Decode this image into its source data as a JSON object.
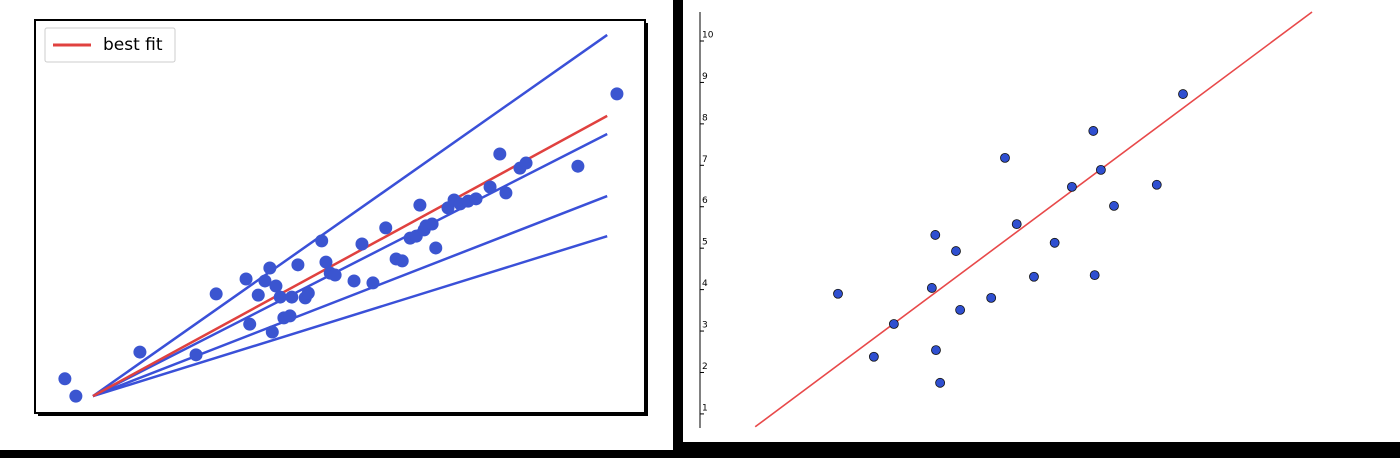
{
  "chart_data": [
    {
      "type": "scatter",
      "legend": "upper left",
      "xlim": [
        0,
        10
      ],
      "ylim": [
        0,
        10
      ],
      "points": {
        "color": "#3b55d0",
        "x": [
          0.49,
          0.67,
          1.72,
          2.64,
          2.97,
          3.46,
          3.52,
          3.66,
          3.77,
          3.85,
          3.89,
          3.95,
          4.02,
          4.08,
          4.18,
          4.21,
          4.31,
          4.43,
          4.48,
          4.7,
          4.77,
          4.84,
          4.92,
          5.23,
          5.36,
          5.54,
          5.75,
          5.92,
          6.02,
          6.15,
          6.25,
          6.31,
          6.38,
          6.41,
          6.51,
          6.57,
          6.77,
          6.87,
          6.97,
          7.1,
          7.23,
          7.46,
          7.62,
          7.72,
          7.95,
          8.05,
          8.9,
          9.54
        ],
        "y": [
          0.87,
          0.43,
          1.55,
          1.48,
          3.03,
          3.41,
          2.26,
          3.0,
          3.36,
          3.69,
          2.06,
          3.23,
          2.95,
          2.42,
          2.47,
          2.95,
          3.77,
          2.93,
          3.05,
          4.38,
          3.84,
          3.56,
          3.51,
          3.36,
          4.3,
          3.31,
          4.71,
          3.92,
          3.87,
          4.45,
          4.5,
          5.29,
          4.66,
          4.76,
          4.81,
          4.2,
          5.22,
          5.42,
          5.32,
          5.39,
          5.45,
          5.75,
          6.59,
          5.6,
          6.23,
          6.36,
          6.28,
          8.12
        ]
      },
      "series": [
        {
          "color": "#3a50d8",
          "x": [
            0.95,
            9.38
          ],
          "values": [
            0.43,
            9.62
          ]
        },
        {
          "color": "#3a50d8",
          "x": [
            0.95,
            9.38
          ],
          "values": [
            0.43,
            7.1
          ]
        },
        {
          "color": "#3a50d8",
          "x": [
            0.95,
            9.38
          ],
          "values": [
            0.43,
            5.52
          ]
        },
        {
          "color": "#3a50d8",
          "x": [
            0.95,
            9.38
          ],
          "values": [
            0.43,
            4.5
          ]
        },
        {
          "name": "best fit",
          "color": "#e0413f",
          "x": [
            0.95,
            9.38
          ],
          "values": [
            0.43,
            7.56
          ]
        }
      ]
    },
    {
      "type": "scatter",
      "xlim": [
        0,
        10
      ],
      "ylim": [
        0.66,
        10.7
      ],
      "yticks": [
        1,
        2,
        3,
        4,
        5,
        6,
        7,
        8,
        9,
        10
      ],
      "points": {
        "color": "#2f4fd0",
        "x": [
          2.0,
          2.52,
          2.81,
          3.36,
          3.41,
          3.42,
          3.48,
          3.71,
          3.77,
          4.22,
          4.42,
          4.59,
          4.84,
          5.14,
          5.39,
          5.7,
          5.72,
          5.81,
          6.0,
          6.62,
          7.0
        ],
        "y": [
          3.9,
          2.38,
          3.17,
          4.04,
          5.32,
          2.54,
          1.75,
          4.93,
          3.51,
          3.8,
          7.18,
          5.58,
          4.31,
          5.13,
          6.48,
          7.83,
          4.35,
          6.89,
          6.02,
          6.53,
          8.72
        ]
      },
      "series": [
        {
          "color": "#e8494a",
          "x": [
            0.8,
            8.87
          ],
          "values": [
            0.69,
            10.7
          ]
        }
      ]
    }
  ]
}
